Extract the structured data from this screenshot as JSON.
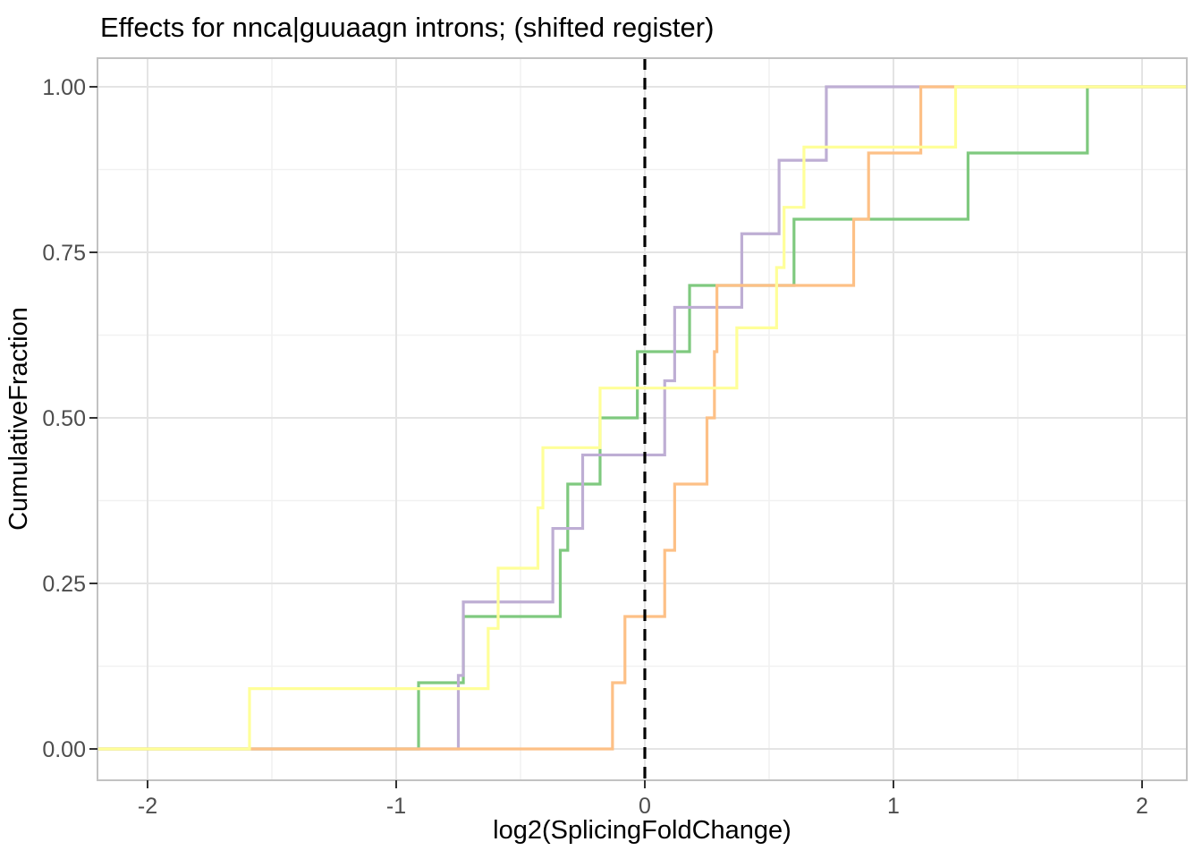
{
  "title": "Effects for nnca|guuaagn introns; (shifted register)",
  "colors": {
    "series_green": "#7FC97F",
    "series_purple": "#BEAED4",
    "series_orange": "#FDC086",
    "series_yellow": "#FFFF99",
    "reference_line": "#000000",
    "grid_major": "#E4E4E4",
    "grid_minor": "#F1F1F1",
    "panel_border": "#C2C2C2",
    "tick_mark": "#333333",
    "tick_label": "#4D4D4D"
  },
  "chart_data": {
    "type": "line",
    "subtype": "ecdf-step",
    "title": "Effects for nnca|guuaagn introns; (shifted register)",
    "xlabel": "log2(SplicingFoldChange)",
    "ylabel": "CumulativeFraction",
    "xlim": [
      -2.2,
      2.18
    ],
    "ylim": [
      -0.045,
      1.045
    ],
    "x_ticks": [
      -2,
      -1,
      0,
      1,
      2
    ],
    "x_tick_labels": [
      "-2",
      "-1",
      "0",
      "1",
      "2"
    ],
    "x_minor_ticks": [
      -1.5,
      -0.5,
      0.5,
      1.5
    ],
    "y_ticks": [
      0,
      0.25,
      0.5,
      0.75,
      1
    ],
    "y_tick_labels": [
      "0.00",
      "0.25",
      "0.50",
      "0.75",
      "1.00"
    ],
    "y_minor_ticks": [
      0.125,
      0.375,
      0.625,
      0.875
    ],
    "grid": true,
    "legend": false,
    "vline": {
      "x": 0,
      "style": "dashed",
      "color": "#000000"
    },
    "series": [
      {
        "name": "green",
        "color": "#7FC97F",
        "n": 10,
        "x": [
          -0.91,
          -0.73,
          -0.34,
          -0.31,
          -0.18,
          -0.03,
          0.18,
          0.6,
          1.3,
          1.78
        ],
        "y": [
          0.1,
          0.2,
          0.3,
          0.4,
          0.5,
          0.6,
          0.7,
          0.8,
          0.9,
          1.0
        ]
      },
      {
        "name": "purple",
        "color": "#BEAED4",
        "n": 9,
        "x": [
          -0.75,
          -0.73,
          -0.37,
          -0.25,
          0.08,
          0.12,
          0.39,
          0.54,
          0.73
        ],
        "y": [
          0.111,
          0.222,
          0.333,
          0.444,
          0.556,
          0.667,
          0.778,
          0.889,
          1.0
        ]
      },
      {
        "name": "orange",
        "color": "#FDC086",
        "n": 10,
        "x": [
          -0.13,
          -0.08,
          0.08,
          0.12,
          0.25,
          0.28,
          0.29,
          0.84,
          0.9,
          1.11
        ],
        "y": [
          0.1,
          0.2,
          0.3,
          0.4,
          0.5,
          0.6,
          0.7,
          0.8,
          0.9,
          1.0
        ]
      },
      {
        "name": "yellow",
        "color": "#FFFF99",
        "n": 11,
        "x": [
          -1.59,
          -0.63,
          -0.59,
          -0.43,
          -0.41,
          -0.18,
          0.37,
          0.53,
          0.56,
          0.64,
          1.25
        ],
        "y": [
          0.091,
          0.182,
          0.273,
          0.364,
          0.455,
          0.545,
          0.636,
          0.727,
          0.818,
          0.909,
          1.0
        ]
      }
    ]
  }
}
